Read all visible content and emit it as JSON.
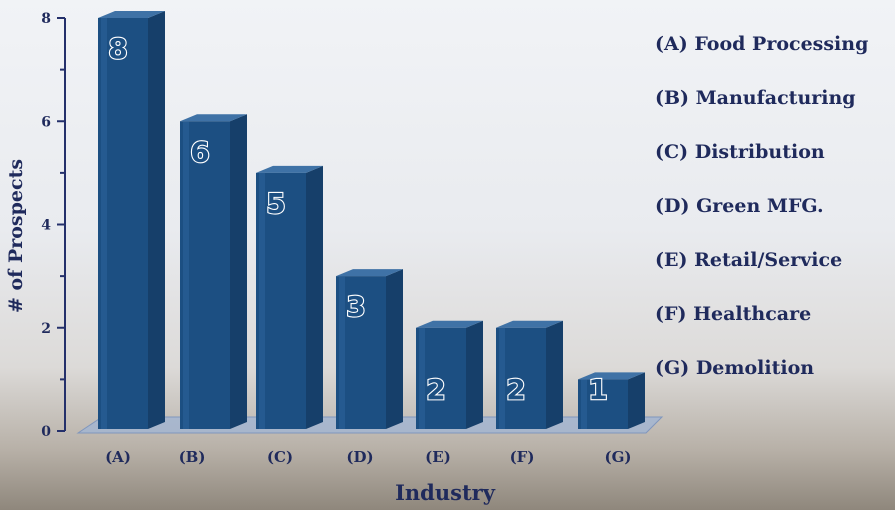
{
  "chart_data": {
    "type": "bar",
    "title": "",
    "xlabel": "Industry",
    "ylabel": "# of Prospects",
    "ylim": [
      0,
      8
    ],
    "yticks": [
      "0",
      "2",
      "4",
      "6",
      "8"
    ],
    "categories": [
      "(A)",
      "(B)",
      "(C)",
      "(D)",
      "(E)",
      "(F)",
      "(G)"
    ],
    "values": [
      8,
      6,
      5,
      3,
      2,
      2,
      1
    ],
    "data_labels": [
      "8",
      "6",
      "5",
      "3",
      "2",
      "2",
      "1"
    ],
    "legend": [
      "(A) Food Processing",
      "(B) Manufacturing",
      "(C) Distribution",
      "(D) Green MFG.",
      "(E) Retail/Service",
      "(F) Healthcare",
      "(G) Demolition"
    ],
    "colors": {
      "bar_front": "#1c4f82",
      "bar_side": "#163f6a",
      "bar_top": "#3f72a6",
      "floor": "#9fb4d4",
      "axis": "#24306b",
      "text": "#1f2a5c"
    }
  }
}
